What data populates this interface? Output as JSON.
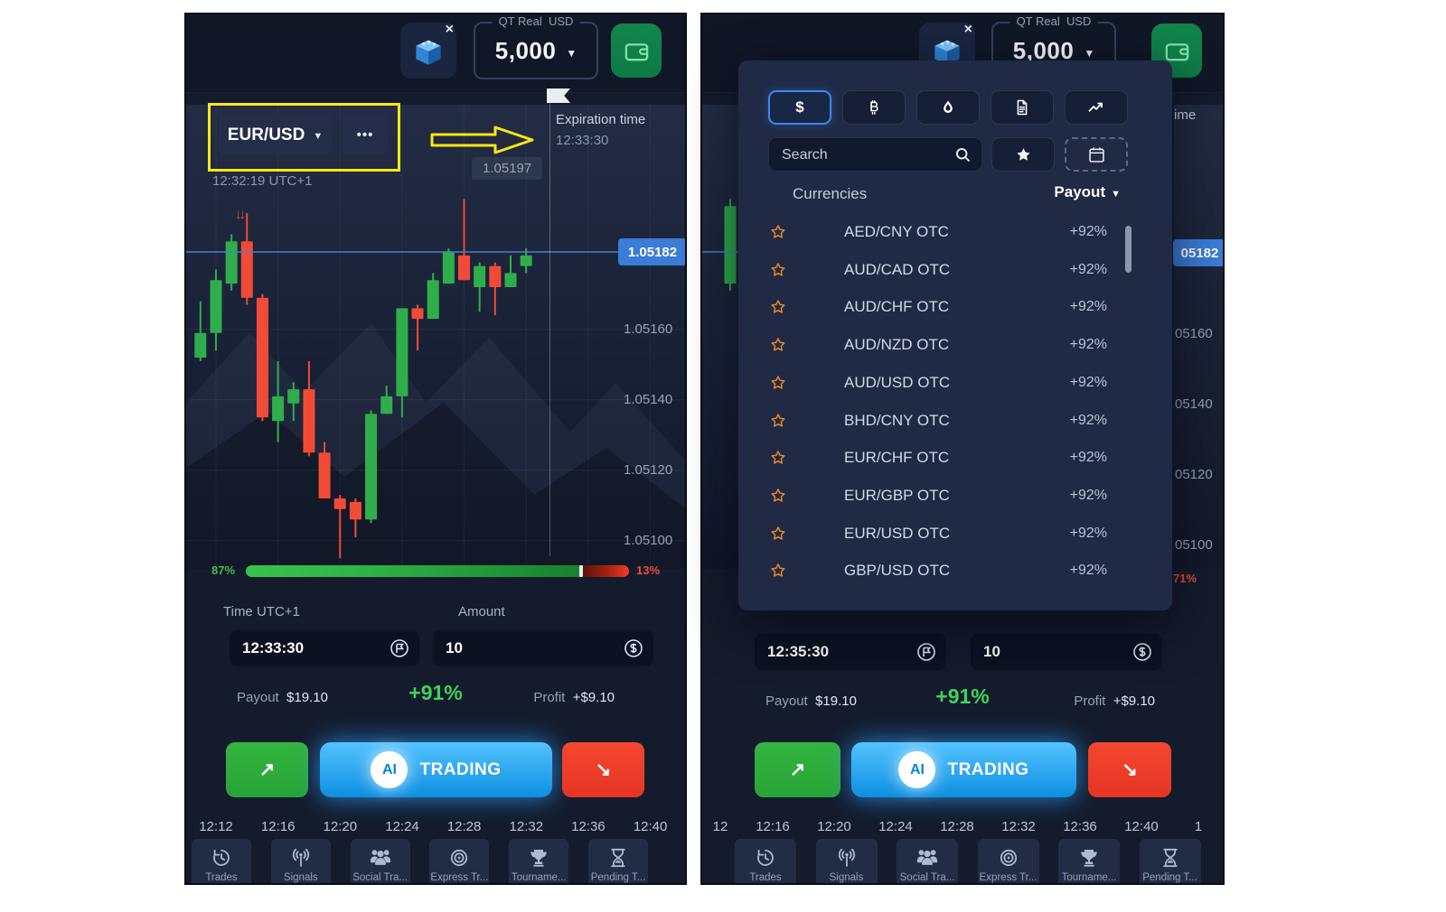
{
  "topbar": {
    "account_type": "QT Real",
    "currency": "USD",
    "balance": "5,000",
    "close": "×"
  },
  "left": {
    "symbol": "EUR/USD",
    "more": "•••",
    "clock": "12:32:19 UTC+1",
    "expiration_label": "Expiration time",
    "expiration_time": "12:33:30",
    "high_label": "1.05197",
    "price_label": "1.05182",
    "y_labels": [
      "1.05160",
      "1.05140",
      "1.05120",
      "1.05100"
    ],
    "x_labels": [
      "12:12",
      "12:16",
      "12:20",
      "12:24",
      "12:28",
      "12:32",
      "12:36",
      "12:40"
    ],
    "sentiment_up": "87%",
    "sentiment_down": "13%",
    "sentiment_up_pct": 87,
    "time_label": "Time UTC+1",
    "time_value": "12:33:30",
    "amount_label": "Amount",
    "amount_value": "10"
  },
  "right": {
    "expiration_partial": "ime",
    "price_label": "05182",
    "y_labels": [
      "05160",
      "05140",
      "05120",
      "05100"
    ],
    "x_labels": [
      "12",
      "12:16",
      "12:20",
      "12:24",
      "12:28",
      "12:32",
      "12:36",
      "12:40",
      "1"
    ],
    "sentiment_down": "71%",
    "time_value": "12:35:30",
    "amount_value": "10"
  },
  "trade": {
    "payout_label": "Payout",
    "payout_value": "$19.10",
    "percent": "+91%",
    "profit_label": "Profit",
    "profit_value": "+$9.10",
    "ai": "AI",
    "trading": "TRADING"
  },
  "nav": [
    {
      "icon": "trades-icon",
      "label": "Trades"
    },
    {
      "icon": "signals-icon",
      "label": "Signals"
    },
    {
      "icon": "social-icon",
      "label": "Social Tra..."
    },
    {
      "icon": "express-icon",
      "label": "Express Tr..."
    },
    {
      "icon": "tournament-icon",
      "label": "Tourname..."
    },
    {
      "icon": "pending-icon",
      "label": "Pending T..."
    }
  ],
  "dropdown": {
    "tabs": [
      {
        "icon": "dollar-icon",
        "name": "currencies",
        "selected": true
      },
      {
        "icon": "bitcoin-icon",
        "name": "crypto",
        "selected": false
      },
      {
        "icon": "droplet-icon",
        "name": "commodities",
        "selected": false
      },
      {
        "icon": "file-icon",
        "name": "stocks",
        "selected": false
      },
      {
        "icon": "trend-icon",
        "name": "indices",
        "selected": false
      }
    ],
    "search_placeholder": "Search",
    "list_title": "Currencies",
    "sort_label": "Payout",
    "items": [
      {
        "pair": "AED/CNY OTC",
        "payout": "+92%"
      },
      {
        "pair": "AUD/CAD OTC",
        "payout": "+92%"
      },
      {
        "pair": "AUD/CHF OTC",
        "payout": "+92%"
      },
      {
        "pair": "AUD/NZD OTC",
        "payout": "+92%"
      },
      {
        "pair": "AUD/USD OTC",
        "payout": "+92%"
      },
      {
        "pair": "BHD/CNY OTC",
        "payout": "+92%"
      },
      {
        "pair": "EUR/CHF OTC",
        "payout": "+92%"
      },
      {
        "pair": "EUR/GBP OTC",
        "payout": "+92%"
      },
      {
        "pair": "EUR/USD OTC",
        "payout": "+92%"
      },
      {
        "pair": "GBP/USD OTC",
        "payout": "+92%"
      }
    ]
  },
  "colors": {
    "green": "#2fae4b",
    "red": "#f14b38",
    "blue": "#3b7cd7",
    "yellow": "#f8e812",
    "payout_green": "#3ed35b"
  },
  "chart_data": {
    "type": "candlestick",
    "symbol": "EUR/USD",
    "interval_minutes": 1,
    "current_price": 1.05182,
    "session_high_label": 1.05197,
    "ylim": [
      1.05094,
      1.05202
    ],
    "y_ticks": [
      1.0516,
      1.0514,
      1.0512,
      1.051
    ],
    "x_ticks": [
      "12:12",
      "12:16",
      "12:20",
      "12:24",
      "12:28",
      "12:32",
      "12:36",
      "12:40"
    ],
    "grid": true,
    "sentiment": {
      "up_pct": 87,
      "down_pct": 13
    },
    "candles": [
      {
        "t": "12:11",
        "o": 1.05152,
        "h": 1.05168,
        "l": 1.05151,
        "c": 1.05159
      },
      {
        "t": "12:12",
        "o": 1.05159,
        "h": 1.05177,
        "l": 1.05154,
        "c": 1.05174
      },
      {
        "t": "12:13",
        "o": 1.05173,
        "h": 1.05187,
        "l": 1.05171,
        "c": 1.05185
      },
      {
        "t": "12:14",
        "o": 1.05185,
        "h": 1.05193,
        "l": 1.05167,
        "c": 1.05169
      },
      {
        "t": "12:15",
        "o": 1.05169,
        "h": 1.0517,
        "l": 1.05134,
        "c": 1.05135
      },
      {
        "t": "12:16",
        "o": 1.05134,
        "h": 1.05151,
        "l": 1.05128,
        "c": 1.05141
      },
      {
        "t": "12:17",
        "o": 1.05139,
        "h": 1.05145,
        "l": 1.05134,
        "c": 1.05143
      },
      {
        "t": "12:18",
        "o": 1.05143,
        "h": 1.05151,
        "l": 1.05124,
        "c": 1.05125
      },
      {
        "t": "12:19",
        "o": 1.05125,
        "h": 1.05128,
        "l": 1.05112,
        "c": 1.05112
      },
      {
        "t": "12:20",
        "o": 1.05112,
        "h": 1.05113,
        "l": 1.05095,
        "c": 1.05109
      },
      {
        "t": "12:21",
        "o": 1.05111,
        "h": 1.05112,
        "l": 1.05101,
        "c": 1.05106
      },
      {
        "t": "12:22",
        "o": 1.05106,
        "h": 1.05137,
        "l": 1.05105,
        "c": 1.05136
      },
      {
        "t": "12:23",
        "o": 1.05136,
        "h": 1.05144,
        "l": 1.05136,
        "c": 1.05141
      },
      {
        "t": "12:24",
        "o": 1.05141,
        "h": 1.05166,
        "l": 1.05135,
        "c": 1.05166
      },
      {
        "t": "12:25",
        "o": 1.05166,
        "h": 1.05167,
        "l": 1.05154,
        "c": 1.05163
      },
      {
        "t": "12:26",
        "o": 1.05163,
        "h": 1.05176,
        "l": 1.05163,
        "c": 1.05174
      },
      {
        "t": "12:27",
        "o": 1.05173,
        "h": 1.05183,
        "l": 1.05173,
        "c": 1.05182
      },
      {
        "t": "12:28",
        "o": 1.05181,
        "h": 1.05197,
        "l": 1.05174,
        "c": 1.05174
      },
      {
        "t": "12:29",
        "o": 1.05172,
        "h": 1.05179,
        "l": 1.05165,
        "c": 1.05178
      },
      {
        "t": "12:30",
        "o": 1.05178,
        "h": 1.05179,
        "l": 1.05164,
        "c": 1.05172
      },
      {
        "t": "12:31",
        "o": 1.05172,
        "h": 1.05181,
        "l": 1.05172,
        "c": 1.05176
      },
      {
        "t": "12:32",
        "o": 1.05178,
        "h": 1.05183,
        "l": 1.05176,
        "c": 1.05181
      }
    ],
    "right_edge_candle": {
      "t": "12:35",
      "o": 1.05173,
      "h": 1.05197,
      "l": 1.05171,
      "c": 1.05195
    }
  }
}
